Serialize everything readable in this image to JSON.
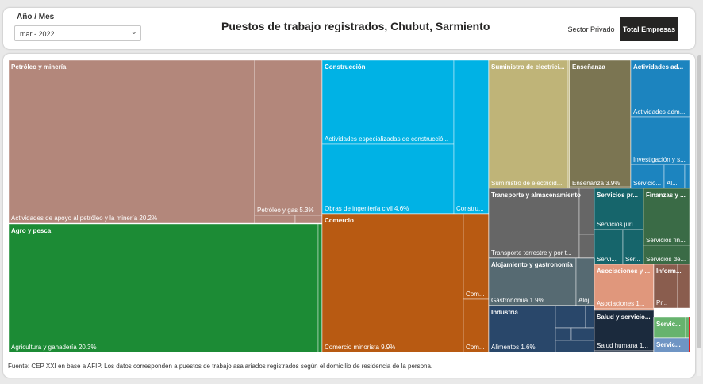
{
  "filter": {
    "label": "Año / Mes",
    "value": "mar - 2022"
  },
  "header": {
    "title": "Puestos de trabajo registrados, Chubut, Sarmiento"
  },
  "buttons": {
    "private": "Sector Privado",
    "total": "Total Empresas"
  },
  "footer": "Fuente: CEP XXI en base a AFIP. Los datos corresponden a puestos de trabajo asalariados registrados según el domicilio de residencia de la persona.",
  "colors": {
    "petroleo": "#B3877B",
    "agro": "#1C8B35",
    "construccion": "#00B2E5",
    "comercio": "#B85A12",
    "suministro": "#BFB478",
    "ensenanza": "#7B7552",
    "act_adm": "#1C84BF",
    "transporte": "#666666",
    "serv_prof": "#16656B",
    "finanzas": "#3A6B46",
    "alojamiento": "#566A72",
    "asociaciones": "#E0977C",
    "informacion": "#8A5D4E",
    "industria": "#29476A",
    "salud": "#1B2A3D",
    "serv_otros": "#67B36E",
    "serv_otros2": "#6F95C4"
  },
  "chart_data": {
    "type": "treemap",
    "groups": [
      {
        "id": "petroleo",
        "name": "Petróleo y minería",
        "children": [
          {
            "label": "Actividades de apoyo al petróleo y la minería 20.2%",
            "value": 20.2
          },
          {
            "label": "Petróleo y gas 5.3%",
            "value": 5.3
          },
          {
            "label": "",
            "value": 0.35
          },
          {
            "label": "",
            "value": 0.15
          }
        ]
      },
      {
        "id": "agro",
        "name": "Agro y pesca",
        "children": [
          {
            "label": "Agricultura y ganadería 20.3%",
            "value": 20.3
          },
          {
            "label": "",
            "value": 0.15
          }
        ]
      },
      {
        "id": "construccion",
        "name": "Construcción",
        "children": [
          {
            "label": "Actividades especializadas de construcció...",
            "value": 5.5
          },
          {
            "label": "Obras de ingeniería civil 4.6%",
            "value": 4.6
          },
          {
            "label": "Constru...",
            "value": 2.3
          }
        ]
      },
      {
        "id": "comercio",
        "name": "Comercio",
        "children": [
          {
            "label": "Comercio minorista 9.9%",
            "value": 9.9
          },
          {
            "label": "Com...",
            "value": 1.4
          },
          {
            "label": "Com...",
            "value": 1.2
          }
        ]
      },
      {
        "id": "suministro",
        "name": "Suministro de electrici...",
        "children": [
          {
            "label": "Suministro de electricid...",
            "value": 4.1
          },
          {
            "label": "",
            "value": 0.1
          }
        ]
      },
      {
        "id": "ensenanza",
        "name": "Enseñanza",
        "children": [
          {
            "label": "Enseñanza 3.9%",
            "value": 3.9
          },
          {
            "label": "",
            "value": 0.05
          }
        ]
      },
      {
        "id": "act_adm",
        "name": "Actividades ad...",
        "children": [
          {
            "label": "Actividades adm...",
            "value": 1.2
          },
          {
            "label": "Investigación y s...",
            "value": 1.0
          },
          {
            "label": "Servicio...",
            "value": 0.55
          },
          {
            "label": "Al...",
            "value": 0.3
          },
          {
            "label": "",
            "value": 0.1
          }
        ]
      },
      {
        "id": "transporte",
        "name": "Transporte y almacenamiento",
        "children": [
          {
            "label": "Transporte terrestre y por t...",
            "value": 3.3
          },
          {
            "label": "",
            "value": 0.35
          },
          {
            "label": "",
            "value": 0.15
          }
        ]
      },
      {
        "id": "serv_prof",
        "name": "Servicios pr...",
        "children": [
          {
            "label": "Servicios jurí...",
            "value": 0.9
          },
          {
            "label": "Servi...",
            "value": 0.4
          },
          {
            "label": "Ser...",
            "value": 0.35
          }
        ]
      },
      {
        "id": "finanzas",
        "name": "Finanzas y ...",
        "children": [
          {
            "label": "Servicios fin...",
            "value": 0.9
          },
          {
            "label": "Servicios de...",
            "value": 0.45
          }
        ]
      },
      {
        "id": "alojamiento",
        "name": "Alojamiento y gastronomía",
        "children": [
          {
            "label": "Gastronomía 1.9%",
            "value": 1.9
          },
          {
            "label": "Aloj...",
            "value": 0.4
          }
        ]
      },
      {
        "id": "asociaciones",
        "name": "Asociaciones y ...",
        "children": [
          {
            "label": "Asociaciones 1...",
            "value": 1.1
          },
          {
            "label": "",
            "value": 0.05
          }
        ]
      },
      {
        "id": "informacion",
        "name": "Inform...",
        "children": [
          {
            "label": "Pr...",
            "value": 0.6
          },
          {
            "label": "",
            "value": 0.2
          }
        ]
      },
      {
        "id": "industria",
        "name": "Industria",
        "children": [
          {
            "label": "Alimentos 1.6%",
            "value": 1.6
          },
          {
            "label": "",
            "value": 0.2
          },
          {
            "label": "",
            "value": 0.2
          },
          {
            "label": "",
            "value": 0.1
          },
          {
            "label": "",
            "value": 0.1
          },
          {
            "label": "",
            "value": 0.1
          }
        ]
      },
      {
        "id": "salud",
        "name": "Salud y servicio...",
        "children": [
          {
            "label": "Salud humana 1...",
            "value": 1.1
          },
          {
            "label": "",
            "value": 0.1
          }
        ]
      },
      {
        "id": "serv_otros",
        "name": "Servic...",
        "children": [
          {
            "label": "",
            "value": 0.45
          },
          {
            "label": "",
            "value": 0.05
          }
        ]
      },
      {
        "id": "serv_otros2",
        "name": "Servic...",
        "children": [
          {
            "label": "",
            "value": 0.35
          }
        ]
      }
    ]
  }
}
